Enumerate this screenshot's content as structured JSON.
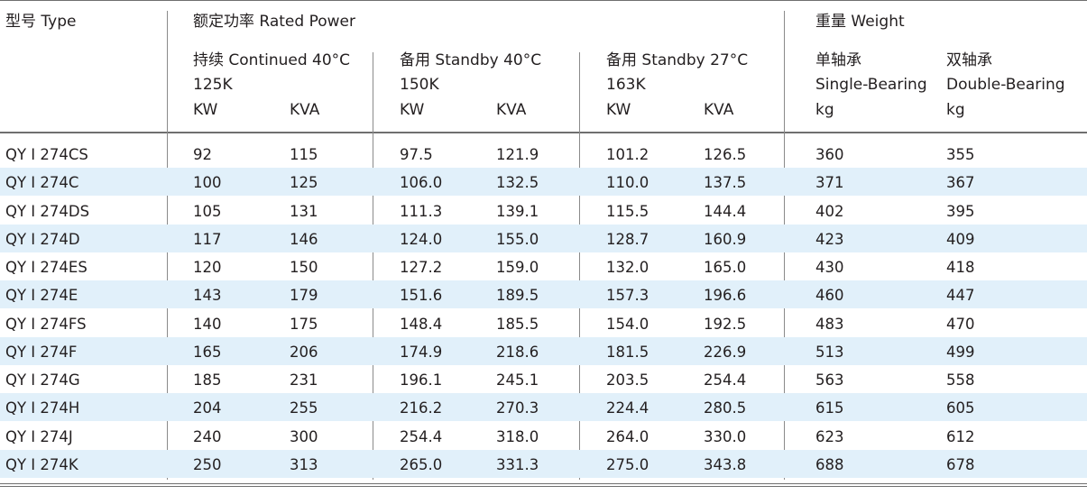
{
  "header": {
    "model": "型号 Type",
    "rated_power": "额定功率 Rated Power",
    "weight": "重量 Weight",
    "groups": [
      {
        "name": "持续 Continued 40°C",
        "temp": "125K",
        "kw": "KW",
        "kva": "KVA"
      },
      {
        "name": "备用 Standby 40°C",
        "temp": "150K",
        "kw": "KW",
        "kva": "KVA"
      },
      {
        "name": "备用 Standby 27°C",
        "temp": "163K",
        "kw": "KW",
        "kva": "KVA"
      }
    ],
    "single": {
      "cn": "单轴承",
      "en": "Single-Bearing",
      "unit": "kg"
    },
    "double": {
      "cn": "双轴承",
      "en": "Double-Bearing",
      "unit": "kg"
    }
  },
  "rows": [
    {
      "model": "QY Ⅰ 274CS",
      "c_kw": "92",
      "c_kva": "115",
      "s40_kw": "97.5",
      "s40_kva": "121.9",
      "s27_kw": "101.2",
      "s27_kva": "126.5",
      "single": "360",
      "double": "355"
    },
    {
      "model": "QY Ⅰ 274C",
      "c_kw": "100",
      "c_kva": "125",
      "s40_kw": "106.0",
      "s40_kva": "132.5",
      "s27_kw": "110.0",
      "s27_kva": "137.5",
      "single": "371",
      "double": "367"
    },
    {
      "model": "QY Ⅰ 274DS",
      "c_kw": "105",
      "c_kva": "131",
      "s40_kw": "111.3",
      "s40_kva": "139.1",
      "s27_kw": "115.5",
      "s27_kva": "144.4",
      "single": "402",
      "double": "395"
    },
    {
      "model": "QY Ⅰ 274D",
      "c_kw": "117",
      "c_kva": "146",
      "s40_kw": "124.0",
      "s40_kva": "155.0",
      "s27_kw": "128.7",
      "s27_kva": "160.9",
      "single": "423",
      "double": "409"
    },
    {
      "model": "QY Ⅰ 274ES",
      "c_kw": "120",
      "c_kva": "150",
      "s40_kw": "127.2",
      "s40_kva": "159.0",
      "s27_kw": "132.0",
      "s27_kva": "165.0",
      "single": "430",
      "double": "418"
    },
    {
      "model": "QY Ⅰ 274E",
      "c_kw": "143",
      "c_kva": "179",
      "s40_kw": "151.6",
      "s40_kva": "189.5",
      "s27_kw": "157.3",
      "s27_kva": "196.6",
      "single": "460",
      "double": "447"
    },
    {
      "model": "QY Ⅰ 274FS",
      "c_kw": "140",
      "c_kva": "175",
      "s40_kw": "148.4",
      "s40_kva": "185.5",
      "s27_kw": "154.0",
      "s27_kva": "192.5",
      "single": "483",
      "double": "470"
    },
    {
      "model": "QY Ⅰ 274F",
      "c_kw": "165",
      "c_kva": "206",
      "s40_kw": "174.9",
      "s40_kva": "218.6",
      "s27_kw": "181.5",
      "s27_kva": "226.9",
      "single": "513",
      "double": "499"
    },
    {
      "model": "QY Ⅰ 274G",
      "c_kw": "185",
      "c_kva": "231",
      "s40_kw": "196.1",
      "s40_kva": "245.1",
      "s27_kw": "203.5",
      "s27_kva": "254.4",
      "single": "563",
      "double": "558"
    },
    {
      "model": "QY Ⅰ 274H",
      "c_kw": "204",
      "c_kva": "255",
      "s40_kw": "216.2",
      "s40_kva": "270.3",
      "s27_kw": "224.4",
      "s27_kva": "280.5",
      "single": "615",
      "double": "605"
    },
    {
      "model": "QY Ⅰ 274J",
      "c_kw": "240",
      "c_kva": "300",
      "s40_kw": "254.4",
      "s40_kva": "318.0",
      "s27_kw": "264.0",
      "s27_kva": "330.0",
      "single": "623",
      "double": "612"
    },
    {
      "model": "QY Ⅰ 274K",
      "c_kw": "250",
      "c_kva": "313",
      "s40_kw": "265.0",
      "s40_kva": "331.3",
      "s27_kw": "275.0",
      "s27_kva": "343.8",
      "single": "688",
      "double": "678"
    }
  ]
}
